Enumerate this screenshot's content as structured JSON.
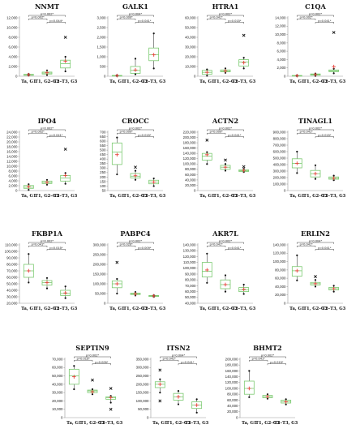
{
  "chart_data": [
    {
      "type": "box",
      "title": "NNMT",
      "categories": [
        "Ta, G1",
        "T1, G2–G3",
        "T2–T3, G3"
      ],
      "ylim": [
        0,
        12000
      ],
      "yticks": [
        "0",
        "2,000",
        "4,000",
        "6,000",
        "8,000",
        "10,000",
        "12,000"
      ],
      "boxes": [
        {
          "min": 150,
          "q1": 200,
          "median": 280,
          "q3": 380,
          "max": 480,
          "mean": 310,
          "outliers": []
        },
        {
          "min": 250,
          "q1": 450,
          "median": 650,
          "q3": 850,
          "max": 1200,
          "mean": 720,
          "outliers": []
        },
        {
          "min": 1000,
          "q1": 1700,
          "median": 2600,
          "q3": 3300,
          "max": 4000,
          "mean": 3100,
          "outliers": [
            8000
          ]
        }
      ],
      "brackets": [
        {
          "from": 0,
          "to": 2,
          "label": "p=0.002*"
        },
        {
          "from": 0,
          "to": 1,
          "label": "p=0.002*"
        },
        {
          "from": 1,
          "to": 2,
          "label": "p=0.044*"
        }
      ]
    },
    {
      "type": "box",
      "title": "GALK1",
      "categories": [
        "Ta, G1",
        "T1, G2–G3",
        "T2–T3, G3"
      ],
      "ylim": [
        0,
        3000
      ],
      "yticks": [
        "0",
        "500",
        "1,000",
        "1,500",
        "2,000",
        "2,500",
        "3,000"
      ],
      "boxes": [
        {
          "min": 10,
          "q1": 20,
          "median": 30,
          "q3": 40,
          "max": 55,
          "mean": 32,
          "outliers": []
        },
        {
          "min": 100,
          "q1": 150,
          "median": 300,
          "q3": 500,
          "max": 900,
          "mean": 320,
          "outliers": []
        },
        {
          "min": 400,
          "q1": 800,
          "median": 1100,
          "q3": 1450,
          "max": 2200,
          "mean": 1100,
          "outliers": []
        }
      ],
      "brackets": [
        {
          "from": 0,
          "to": 2,
          "label": "p=0.004*"
        },
        {
          "from": 0,
          "to": 1,
          "label": "p=0.009*"
        },
        {
          "from": 1,
          "to": 2,
          "label": "p=0.041*"
        }
      ]
    },
    {
      "type": "box",
      "title": "HTRA1",
      "categories": [
        "Ta, G1",
        "T1, G2–G3",
        "T2–T3, G3"
      ],
      "ylim": [
        0,
        60000
      ],
      "yticks": [
        "0",
        "10,000",
        "20,000",
        "30,000",
        "40,000",
        "50,000",
        "60,000"
      ],
      "boxes": [
        {
          "min": 500,
          "q1": 2000,
          "median": 4000,
          "q3": 6000,
          "max": 7000,
          "mean": 4000,
          "outliers": []
        },
        {
          "min": 3500,
          "q1": 4500,
          "median": 5200,
          "q3": 6500,
          "max": 8000,
          "mean": 5500,
          "outliers": []
        },
        {
          "min": 8000,
          "q1": 10500,
          "median": 14500,
          "q3": 17000,
          "max": 19000,
          "mean": 14000,
          "outliers": [
            42000
          ]
        }
      ],
      "brackets": [
        {
          "from": 0,
          "to": 2,
          "label": "p=0.002*"
        },
        {
          "from": 0,
          "to": 1,
          "label": "p=0.041*"
        },
        {
          "from": 1,
          "to": 2,
          "label": "p=0.015*"
        }
      ]
    },
    {
      "type": "box",
      "title": "C1QA",
      "categories": [
        "Ta, G1",
        "T1, G2–G3",
        "T2–T3, G3"
      ],
      "ylim": [
        0,
        14000
      ],
      "yticks": [
        "0",
        "2,000",
        "4,000",
        "6,000",
        "8,000",
        "10,000",
        "12,000",
        "14,000"
      ],
      "boxes": [
        {
          "min": 30,
          "q1": 80,
          "median": 130,
          "q3": 180,
          "max": 230,
          "mean": 130,
          "outliers": []
        },
        {
          "min": 80,
          "q1": 250,
          "median": 400,
          "q3": 550,
          "max": 650,
          "mean": 400,
          "outliers": []
        },
        {
          "min": 700,
          "q1": 1100,
          "median": 1300,
          "q3": 1500,
          "max": 1800,
          "mean": 2300,
          "outliers": [
            10500
          ]
        }
      ],
      "brackets": [
        {
          "from": 0,
          "to": 2,
          "label": "p=0.002*"
        },
        {
          "from": 0,
          "to": 1,
          "label": "p=0.002*"
        },
        {
          "from": 1,
          "to": 2,
          "label": "p=0.041*"
        }
      ]
    },
    {
      "type": "box",
      "title": "IPO4",
      "categories": [
        "Ta, G1",
        "T1, G2–G3",
        "T2–T3, G3"
      ],
      "ylim": [
        0,
        24000
      ],
      "yticks": [
        "0",
        "2,000",
        "4,000",
        "6,000",
        "8,000",
        "10,000",
        "12,000",
        "14,000",
        "16,000",
        "18,000",
        "20,000",
        "22,000",
        "24,000"
      ],
      "boxes": [
        {
          "min": 300,
          "q1": 900,
          "median": 1400,
          "q3": 2100,
          "max": 2600,
          "mean": 1600,
          "outliers": []
        },
        {
          "min": 2400,
          "q1": 2900,
          "median": 3300,
          "q3": 3900,
          "max": 4400,
          "mean": 3400,
          "outliers": []
        },
        {
          "min": 2800,
          "q1": 3900,
          "median": 5200,
          "q3": 6200,
          "max": 7200,
          "mean": 6200,
          "outliers": [
            17000
          ]
        }
      ],
      "brackets": [
        {
          "from": 0,
          "to": 2,
          "label": "p=0.002*"
        },
        {
          "from": 0,
          "to": 1,
          "label": "p=0.002*"
        },
        {
          "from": 1,
          "to": 2,
          "label": "p=0.041*"
        }
      ]
    },
    {
      "type": "box",
      "title": "CROCC",
      "categories": [
        "Ta, G1",
        "T1, G2–G3",
        "T2–T3, G3"
      ],
      "ylim": [
        50,
        700
      ],
      "yticks": [
        "50",
        "100",
        "150",
        "200",
        "250",
        "300",
        "350",
        "400",
        "450",
        "500",
        "550",
        "600",
        "650",
        "700"
      ],
      "boxes": [
        {
          "min": 230,
          "q1": 340,
          "median": 480,
          "q3": 580,
          "max": 640,
          "mean": 450,
          "outliers": []
        },
        {
          "min": 170,
          "q1": 190,
          "median": 210,
          "q3": 240,
          "max": 270,
          "mean": 215,
          "outliers": [
            310
          ]
        },
        {
          "min": 100,
          "q1": 125,
          "median": 145,
          "q3": 165,
          "max": 185,
          "mean": 145,
          "outliers": []
        }
      ],
      "brackets": [
        {
          "from": 0,
          "to": 2,
          "label": "p=0.002*"
        },
        {
          "from": 0,
          "to": 1,
          "label": "p=0.009*"
        },
        {
          "from": 1,
          "to": 2,
          "label": "p=0.015*"
        }
      ]
    },
    {
      "type": "box",
      "title": "ACTN2",
      "categories": [
        "Ta, G1",
        "T1, G2–G3",
        "T2–T3, G3"
      ],
      "ylim": [
        0,
        220000
      ],
      "yticks": [
        "0",
        "20,000",
        "40,000",
        "60,000",
        "80,000",
        "100,000",
        "120,000",
        "140,000",
        "160,000",
        "180,000",
        "200,000",
        "220,000"
      ],
      "boxes": [
        {
          "min": 100000,
          "q1": 115000,
          "median": 130000,
          "q3": 140000,
          "max": 145000,
          "mean": 135000,
          "outliers": [
            190000
          ]
        },
        {
          "min": 75000,
          "q1": 80000,
          "median": 88000,
          "q3": 95000,
          "max": 100000,
          "mean": 88000,
          "outliers": [
            115000
          ]
        },
        {
          "min": 70000,
          "q1": 72000,
          "median": 75000,
          "q3": 78000,
          "max": 82000,
          "mean": 76000,
          "outliers": [
            90000
          ]
        }
      ],
      "brackets": [
        {
          "from": 0,
          "to": 2,
          "label": "p=0.002*"
        },
        {
          "from": 0,
          "to": 1,
          "label": "p=0.009*"
        },
        {
          "from": 1,
          "to": 2,
          "label": "p=0.041*"
        }
      ]
    },
    {
      "type": "box",
      "title": "TINAGL1",
      "categories": [
        "Ta, G1",
        "T1, G2–G3",
        "T2–T3, G3"
      ],
      "ylim": [
        0,
        900000
      ],
      "yticks": [
        "0",
        "100,000",
        "200,000",
        "300,000",
        "400,000",
        "500,000",
        "600,000",
        "700,000",
        "800,000",
        "900,000"
      ],
      "boxes": [
        {
          "min": 270000,
          "q1": 350000,
          "median": 420000,
          "q3": 490000,
          "max": 600000,
          "mean": 420000,
          "outliers": []
        },
        {
          "min": 180000,
          "q1": 210000,
          "median": 260000,
          "q3": 310000,
          "max": 390000,
          "mean": 260000,
          "outliers": []
        },
        {
          "min": 160000,
          "q1": 175000,
          "median": 190000,
          "q3": 210000,
          "max": 230000,
          "mean": 190000,
          "outliers": []
        }
      ],
      "brackets": [
        {
          "from": 0,
          "to": 2,
          "label": "p=0.002*"
        },
        {
          "from": 0,
          "to": 1,
          "label": "p=0.041*"
        },
        {
          "from": 1,
          "to": 2,
          "label": "p=0.015*"
        }
      ]
    },
    {
      "type": "box",
      "title": "FKBP1A",
      "categories": [
        "Ta, G1",
        "T1, G2–G3",
        "T2–T3, G3"
      ],
      "ylim": [
        20000,
        110000
      ],
      "yticks": [
        "20,000",
        "30,000",
        "40,000",
        "50,000",
        "60,000",
        "70,000",
        "80,000",
        "90,000",
        "100,000",
        "110,000"
      ],
      "boxes": [
        {
          "min": 52000,
          "q1": 60000,
          "median": 70000,
          "q3": 80000,
          "max": 96000,
          "mean": 70000,
          "outliers": []
        },
        {
          "min": 43000,
          "q1": 48000,
          "median": 52000,
          "q3": 55000,
          "max": 59000,
          "mean": 52000,
          "outliers": []
        },
        {
          "min": 28000,
          "q1": 32000,
          "median": 35000,
          "q3": 40000,
          "max": 46000,
          "mean": 36000,
          "outliers": []
        }
      ],
      "brackets": [
        {
          "from": 0,
          "to": 2,
          "label": "p=0.002*"
        },
        {
          "from": 0,
          "to": 1,
          "label": "p=0.041*"
        },
        {
          "from": 1,
          "to": 2,
          "label": "p=0.015*"
        }
      ]
    },
    {
      "type": "box",
      "title": "PABPC4",
      "categories": [
        "Ta, G1",
        "T1, G2–G3",
        "T2–T3, G3"
      ],
      "ylim": [
        0,
        300000
      ],
      "yticks": [
        "0",
        "50,000",
        "100,000",
        "150,000",
        "200,000",
        "250,000",
        "300,000"
      ],
      "boxes": [
        {
          "min": 50000,
          "q1": 80000,
          "median": 100000,
          "q3": 115000,
          "max": 125000,
          "mean": 100000,
          "outliers": [
            210000
          ]
        },
        {
          "min": 40000,
          "q1": 45000,
          "median": 48000,
          "q3": 52000,
          "max": 58000,
          "mean": 48000,
          "outliers": []
        },
        {
          "min": 33000,
          "q1": 35000,
          "median": 38000,
          "q3": 40000,
          "max": 42000,
          "mean": 38000,
          "outliers": []
        }
      ],
      "brackets": [
        {
          "from": 0,
          "to": 2,
          "label": "p=0.002*"
        },
        {
          "from": 0,
          "to": 1,
          "label": "p=0.026*"
        },
        {
          "from": 1,
          "to": 2,
          "label": "p=0.009*"
        }
      ]
    },
    {
      "type": "box",
      "title": "AKR7L",
      "categories": [
        "Ta, G1",
        "T1, G2–G3",
        "T2–T3, G3"
      ],
      "ylim": [
        40000,
        140000
      ],
      "yticks": [
        "40,000",
        "50,000",
        "60,000",
        "70,000",
        "80,000",
        "90,000",
        "100,000",
        "110,000",
        "120,000",
        "130,000",
        "140,000"
      ],
      "boxes": [
        {
          "min": 75000,
          "q1": 85000,
          "median": 95000,
          "q3": 110000,
          "max": 125000,
          "mean": 97000,
          "outliers": []
        },
        {
          "min": 60000,
          "q1": 65000,
          "median": 72000,
          "q3": 80000,
          "max": 88000,
          "mean": 72000,
          "outliers": []
        },
        {
          "min": 56000,
          "q1": 60000,
          "median": 63000,
          "q3": 67000,
          "max": 72000,
          "mean": 64000,
          "outliers": []
        }
      ],
      "brackets": [
        {
          "from": 0,
          "to": 2,
          "label": "p=0.002*"
        },
        {
          "from": 0,
          "to": 1,
          "label": "p=0.041*"
        },
        {
          "from": 1,
          "to": 2,
          "label": "p=0.041*"
        }
      ]
    },
    {
      "type": "box",
      "title": "ERLIN2",
      "categories": [
        "Ta, G1",
        "T1, G2–G3",
        "T2–T3, G3"
      ],
      "ylim": [
        0,
        140000
      ],
      "yticks": [
        "0",
        "20,000",
        "40,000",
        "60,000",
        "80,000",
        "100,000",
        "120,000",
        "140,000"
      ],
      "boxes": [
        {
          "min": 55000,
          "q1": 65000,
          "median": 78000,
          "q3": 88000,
          "max": 115000,
          "mean": 78000,
          "outliers": []
        },
        {
          "min": 40000,
          "q1": 44000,
          "median": 47000,
          "q3": 50000,
          "max": 56000,
          "mean": 47000,
          "outliers": [
            64000
          ]
        },
        {
          "min": 28000,
          "q1": 32000,
          "median": 35000,
          "q3": 38000,
          "max": 42000,
          "mean": 35000,
          "outliers": []
        }
      ],
      "brackets": [
        {
          "from": 0,
          "to": 2,
          "label": "p=0.004*"
        },
        {
          "from": 0,
          "to": 1,
          "label": "p=0.041*"
        },
        {
          "from": 1,
          "to": 2,
          "label": "p=0.041*"
        }
      ]
    },
    {
      "type": "box",
      "title": "SEPTIN9",
      "categories": [
        "Ta, G1",
        "T1, G2–G3",
        "T2–T3, G3"
      ],
      "ylim": [
        0,
        70000
      ],
      "yticks": [
        "0",
        "10,000",
        "20,000",
        "30,000",
        "40,000",
        "50,000",
        "60,000",
        "70,000"
      ],
      "boxes": [
        {
          "min": 34000,
          "q1": 40000,
          "median": 50000,
          "q3": 58000,
          "max": 62000,
          "mean": 49000,
          "outliers": []
        },
        {
          "min": 28000,
          "q1": 30000,
          "median": 32000,
          "q3": 33000,
          "max": 34000,
          "mean": 31000,
          "outliers": [
            45000
          ]
        },
        {
          "min": 18000,
          "q1": 22000,
          "median": 24000,
          "q3": 25000,
          "max": 26000,
          "mean": 24000,
          "outliers": [
            10000,
            35000
          ]
        }
      ],
      "brackets": [
        {
          "from": 0,
          "to": 2,
          "label": "p=0.002*"
        },
        {
          "from": 0,
          "to": 1,
          "label": "p=0.015*"
        },
        {
          "from": 1,
          "to": 2,
          "label": "p=0.026*"
        }
      ]
    },
    {
      "type": "box",
      "title": "ITSN2",
      "categories": [
        "Ta, G1",
        "T1, G2–G3",
        "T2–T3, G3"
      ],
      "ylim": [
        0,
        350000
      ],
      "yticks": [
        "0",
        "50,000",
        "100,000",
        "150,000",
        "200,000",
        "250,000",
        "300,000",
        "350,000"
      ],
      "boxes": [
        {
          "min": 150000,
          "q1": 180000,
          "median": 200000,
          "q3": 215000,
          "max": 230000,
          "mean": 200000,
          "outliers": [
            285000,
            100000
          ]
        },
        {
          "min": 80000,
          "q1": 105000,
          "median": 125000,
          "q3": 145000,
          "max": 160000,
          "mean": 125000,
          "outliers": []
        },
        {
          "min": 30000,
          "q1": 55000,
          "median": 75000,
          "q3": 95000,
          "max": 110000,
          "mean": 75000,
          "outliers": []
        }
      ],
      "brackets": [
        {
          "from": 0,
          "to": 2,
          "label": "p=0.004*"
        },
        {
          "from": 0,
          "to": 1,
          "label": "p=0.041*"
        },
        {
          "from": 1,
          "to": 2,
          "label": "p=0.041*"
        }
      ]
    },
    {
      "type": "box",
      "title": "BHMT2",
      "categories": [
        "Ta, G1",
        "T1, G2–G3",
        "T2–T3, G3"
      ],
      "ylim": [
        0,
        200000
      ],
      "yticks": [
        "0",
        "20,000",
        "40,000",
        "60,000",
        "80,000",
        "100,000",
        "120,000",
        "140,000",
        "160,000",
        "180,000",
        "200,000"
      ],
      "boxes": [
        {
          "min": 70000,
          "q1": 80000,
          "median": 100000,
          "q3": 125000,
          "max": 160000,
          "mean": 100000,
          "outliers": []
        },
        {
          "min": 65000,
          "q1": 68000,
          "median": 72000,
          "q3": 76000,
          "max": 80000,
          "mean": 72000,
          "outliers": []
        },
        {
          "min": 45000,
          "q1": 50000,
          "median": 55000,
          "q3": 60000,
          "max": 63000,
          "mean": 54000,
          "outliers": []
        }
      ],
      "brackets": [
        {
          "from": 0,
          "to": 2,
          "label": "p=0.002*"
        },
        {
          "from": 0,
          "to": 1,
          "label": "p=0.041*"
        },
        {
          "from": 1,
          "to": 2,
          "label": "p=0.015*"
        }
      ]
    }
  ]
}
